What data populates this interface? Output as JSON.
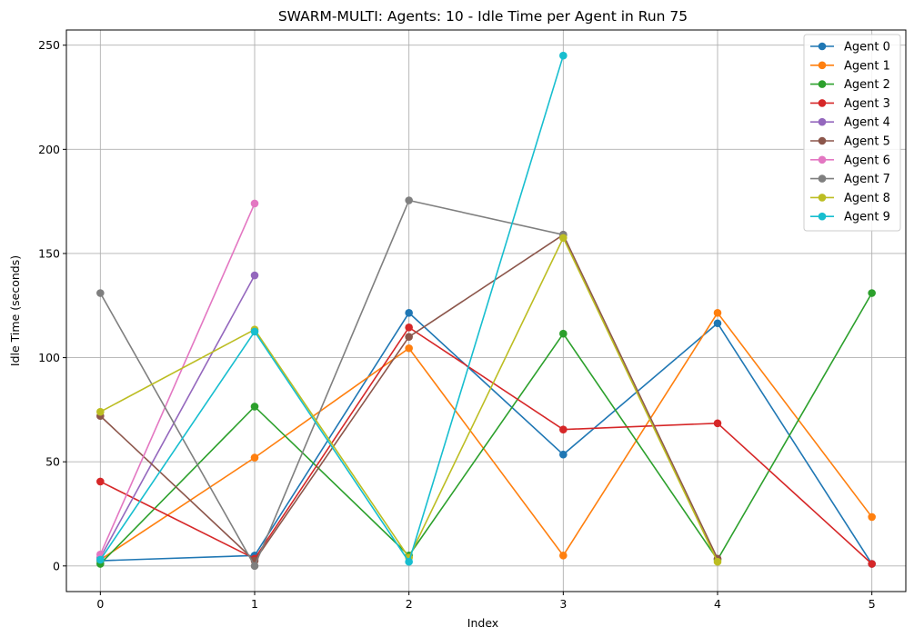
{
  "chart_data": {
    "type": "line",
    "title": "SWARM-MULTI: Agents: 10 - Idle Time per Agent in Run 75",
    "xlabel": "Index",
    "ylabel": "Idle Time (seconds)",
    "xlim": [
      -0.22,
      5.22
    ],
    "ylim": [
      -12.3,
      257.3
    ],
    "xticks": [
      0,
      1,
      2,
      3,
      4,
      5
    ],
    "yticks": [
      0,
      50,
      100,
      150,
      200,
      250
    ],
    "grid": true,
    "legend_position": "top-right",
    "series": [
      {
        "name": "Agent 0",
        "color": "#1f77b4",
        "x": [
          0,
          1,
          2,
          3,
          4,
          5
        ],
        "y": [
          2.5,
          5,
          121.5,
          53.5,
          116.5,
          1
        ]
      },
      {
        "name": "Agent 1",
        "color": "#ff7f0e",
        "x": [
          0,
          1,
          2,
          3,
          4,
          5
        ],
        "y": [
          3,
          52,
          104.5,
          5,
          121.5,
          23.5
        ]
      },
      {
        "name": "Agent 2",
        "color": "#2ca02c",
        "x": [
          0,
          1,
          2,
          3,
          4,
          5
        ],
        "y": [
          1,
          76.5,
          5,
          111.5,
          3,
          131
        ]
      },
      {
        "name": "Agent 3",
        "color": "#d62728",
        "x": [
          0,
          1,
          2,
          3,
          4,
          5
        ],
        "y": [
          40.5,
          3.5,
          114.5,
          65.5,
          68.5,
          1
        ]
      },
      {
        "name": "Agent 4",
        "color": "#9467bd",
        "x": [
          0,
          1
        ],
        "y": [
          4,
          139.5
        ]
      },
      {
        "name": "Agent 5",
        "color": "#8c564b",
        "x": [
          0,
          1,
          2,
          3,
          4
        ],
        "y": [
          72,
          2.5,
          110,
          159,
          3.5
        ]
      },
      {
        "name": "Agent 6",
        "color": "#e377c2",
        "x": [
          0,
          1
        ],
        "y": [
          5.5,
          174
        ]
      },
      {
        "name": "Agent 7",
        "color": "#7f7f7f",
        "x": [
          0,
          1,
          2,
          3
        ],
        "y": [
          131,
          0,
          175.5,
          159
        ]
      },
      {
        "name": "Agent 8",
        "color": "#bcbd22",
        "x": [
          0,
          1,
          2,
          3,
          4
        ],
        "y": [
          74,
          113.5,
          4,
          157.5,
          2
        ]
      },
      {
        "name": "Agent 9",
        "color": "#17becf",
        "x": [
          0,
          1,
          2,
          3
        ],
        "y": [
          3,
          112.5,
          2,
          245
        ]
      }
    ]
  }
}
